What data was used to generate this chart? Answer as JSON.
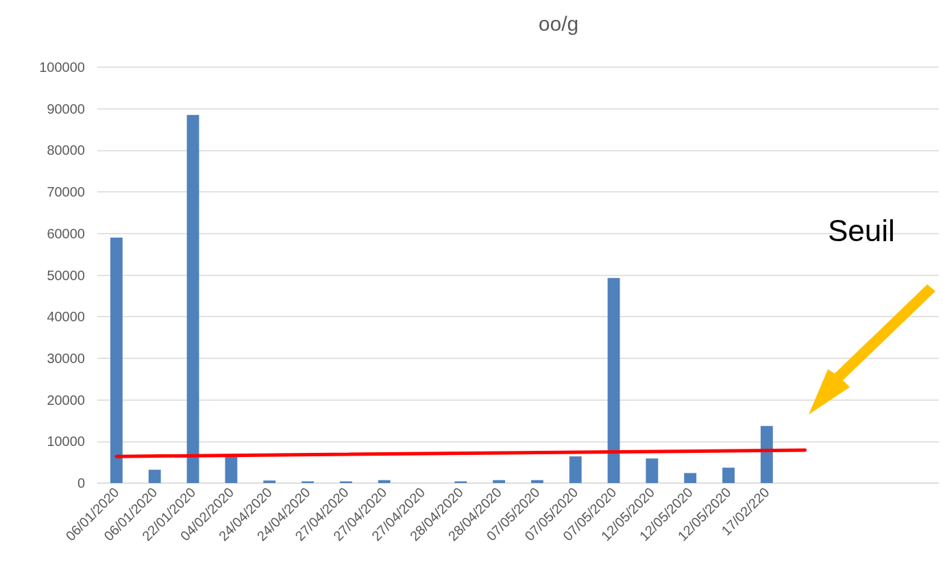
{
  "chart_data": {
    "type": "bar",
    "title": "oo/g",
    "categories": [
      "06/01/2020",
      "06/01/2020",
      "22/01/2020",
      "04/02/2020",
      "24/04/2020",
      "24/04/2020",
      "27/04/2020",
      "27/04/2020",
      "27/04/2020",
      "28/04/2020",
      "28/04/2020",
      "07/05/2020",
      "07/05/2020",
      "07/05/2020",
      "12/05/2020",
      "12/05/2020",
      "12/05/2020",
      "17/02/220",
      null,
      null,
      null,
      null
    ],
    "series": [
      {
        "color": "#4f81bd",
        "values": [
          59000,
          3200,
          88500,
          6400,
          600,
          400,
          400,
          700,
          0,
          400,
          700,
          700,
          6400,
          49300,
          5900,
          2400,
          3700,
          13700,
          null,
          null,
          null,
          null
        ]
      },
      {
        "type": "line",
        "color": "#ff0000",
        "values": [
          6400,
          null,
          null,
          null,
          null,
          null,
          null,
          null,
          null,
          null,
          null,
          null,
          null,
          null,
          null,
          null,
          null,
          null,
          7900,
          null,
          null,
          null
        ]
      }
    ],
    "ylim": [
      0,
      100000
    ],
    "yticks": [
      0,
      10000,
      20000,
      30000,
      40000,
      50000,
      60000,
      70000,
      80000,
      90000,
      100000
    ],
    "grid": "y",
    "marker": "none",
    "annotations": [
      "Seuil"
    ]
  }
}
